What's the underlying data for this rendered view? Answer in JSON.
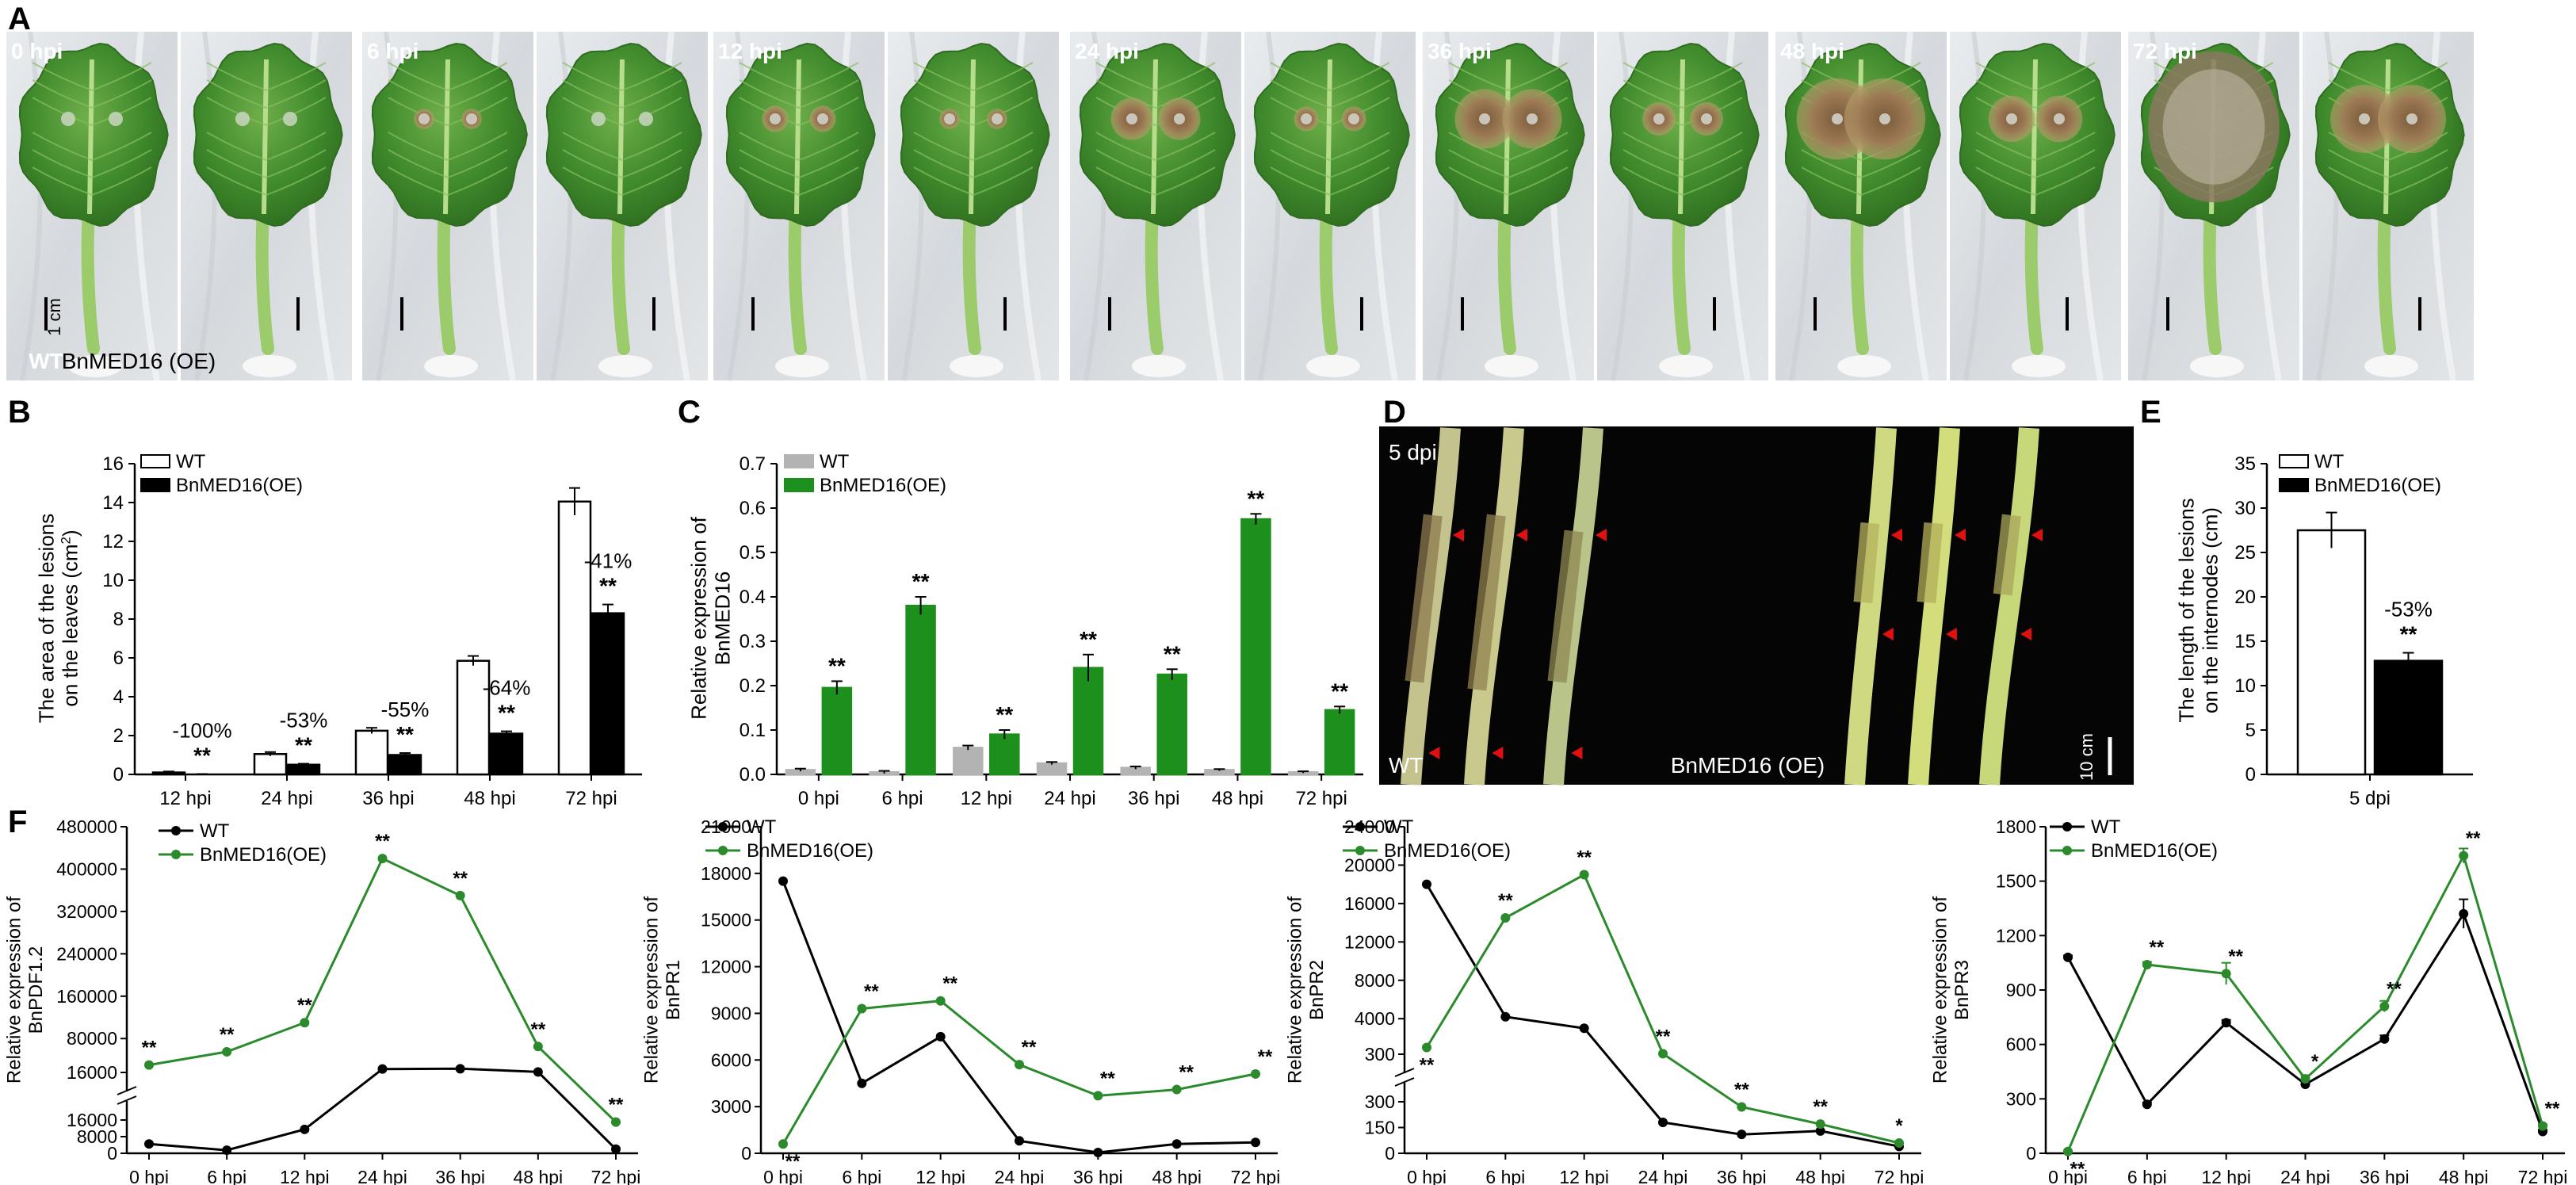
{
  "panel_labels": {
    "A": "A",
    "B": "B",
    "C": "C",
    "D": "D",
    "E": "E",
    "F": "F"
  },
  "colors": {
    "green": "#1d8f1d",
    "green_line": "#2b8a2b",
    "gray": "#b3b3b3",
    "black": "#000000",
    "white": "#ffffff",
    "red_arrow": "#e01010"
  },
  "panel_a": {
    "photos": [
      {
        "label": "0 hpi",
        "wt_rot": 0.5
      },
      {
        "label": "6 hpi",
        "wt_rot": 1
      },
      {
        "label": "12 hpi",
        "wt_rot": 2
      },
      {
        "label": "24 hpi",
        "wt_rot": 0.6
      },
      {
        "label": "36 hpi",
        "wt_rot": 0.75
      },
      {
        "label": "48 hpi",
        "wt_rot": 0.9
      },
      {
        "label": "72 hpi",
        "wt_rot": 1
      }
    ],
    "lesion_levels": [
      0,
      0.05,
      0.12,
      0.3,
      0.5,
      0.75,
      1.0
    ],
    "oe_lesion_levels": [
      0,
      0.02,
      0.05,
      0.1,
      0.2,
      0.35,
      0.6
    ],
    "scale_label": "1 cm",
    "wt_label": "WT",
    "oe_label": "BnMED16 (OE)"
  },
  "panel_d": {
    "time_label": "5 dpi",
    "wt_label": "WT",
    "oe_label": "BnMED16 (OE)",
    "scale_label": "10 cm"
  },
  "chart_data": [
    {
      "panel": "B",
      "type": "bar",
      "categories": [
        "12 hpi",
        "24 hpi",
        "36 hpi",
        "48 hpi",
        "72 hpi"
      ],
      "series": [
        {
          "name": "WT",
          "values": [
            0.1,
            1.05,
            2.25,
            5.85,
            14.05
          ],
          "errors": [
            0.05,
            0.1,
            0.15,
            0.25,
            0.7
          ]
        },
        {
          "name": "BnMED16(OE)",
          "values": [
            0.0,
            0.5,
            1.0,
            2.1,
            8.3
          ],
          "errors": [
            0.02,
            0.05,
            0.1,
            0.12,
            0.45
          ]
        }
      ],
      "annotations": [
        {
          "text": "-100%",
          "sig": "**"
        },
        {
          "text": "-53%",
          "sig": "**"
        },
        {
          "text": "-55%",
          "sig": "**"
        },
        {
          "text": "-64%",
          "sig": "**"
        },
        {
          "text": "-41%",
          "sig": "**"
        }
      ],
      "ylabel_line1": "The area of the lesions",
      "ylabel_line2": "on the leaves (cm",
      "ylabel_sup": "2",
      "ylabel_close": ")",
      "ylim": [
        0,
        16
      ],
      "yticks": [
        0,
        2,
        4,
        6,
        8,
        10,
        12,
        14,
        16
      ]
    },
    {
      "panel": "C",
      "type": "bar",
      "categories": [
        "0 hpi",
        "6 hpi",
        "12 hpi",
        "24 hpi",
        "36 hpi",
        "48 hpi",
        "72 hpi"
      ],
      "series": [
        {
          "name": "WT",
          "values": [
            0.01,
            0.005,
            0.06,
            0.025,
            0.015,
            0.01,
            0.005
          ],
          "errors": [
            0.003,
            0.003,
            0.005,
            0.003,
            0.003,
            0.002,
            0.002
          ]
        },
        {
          "name": "BnMED16(OE)",
          "values": [
            0.195,
            0.38,
            0.09,
            0.24,
            0.225,
            0.575,
            0.145
          ],
          "errors": [
            0.015,
            0.02,
            0.01,
            0.03,
            0.012,
            0.012,
            0.008
          ]
        }
      ],
      "sig": [
        "**",
        "**",
        "**",
        "**",
        "**",
        "**",
        "**"
      ],
      "ylabel_line1": "Relative expression of",
      "ylabel_line2": "BnMED16",
      "ylim": [
        0,
        0.7
      ],
      "yticks": [
        0.0,
        0.1,
        0.2,
        0.3,
        0.4,
        0.5,
        0.6,
        0.7
      ]
    },
    {
      "panel": "E",
      "type": "bar",
      "categories": [
        "5 dpi"
      ],
      "series": [
        {
          "name": "WT",
          "values": [
            27.5
          ],
          "errors": [
            2.0
          ]
        },
        {
          "name": "BnMED16(OE)",
          "values": [
            12.8
          ],
          "errors": [
            0.9
          ]
        }
      ],
      "annotation": {
        "text": "-53%",
        "sig": "**"
      },
      "ylabel_line1": "The length of the lesions",
      "ylabel_line2": "on the internodes (cm)",
      "ylim": [
        0,
        35
      ],
      "yticks": [
        0,
        5,
        10,
        15,
        20,
        25,
        30,
        35
      ]
    },
    {
      "panel": "F1",
      "type": "line",
      "x": [
        "0 hpi",
        "6 hpi",
        "12 hpi",
        "24 hpi",
        "36 hpi",
        "48 hpi",
        "72 hpi"
      ],
      "series": [
        {
          "name": "WT",
          "values": [
            4500,
            1500,
            11500,
            22500,
            23000,
            17000,
            2000
          ]
        },
        {
          "name": "BnMED16(OE)",
          "values": [
            30000,
            55000,
            110000,
            420000,
            350000,
            65000,
            15000
          ]
        }
      ],
      "sig": [
        "**",
        "**",
        "**",
        "**",
        "**",
        "**",
        "**"
      ],
      "ylabel_line1": "Relative expression of",
      "ylabel_line2": "BnPDF1.2",
      "broken_axis": {
        "lower": [
          0,
          24000
        ],
        "upper": [
          16000,
          480000
        ],
        "lower_ticks": [
          0,
          8000,
          16000
        ],
        "upper_ticks": [
          16000,
          80000,
          160000,
          240000,
          320000,
          400000,
          480000
        ]
      }
    },
    {
      "panel": "F2",
      "type": "line",
      "x": [
        "0 hpi",
        "6 hpi",
        "12 hpi",
        "24 hpi",
        "36 hpi",
        "48 hpi",
        "72 hpi"
      ],
      "series": [
        {
          "name": "WT",
          "values": [
            17500,
            4500,
            7500,
            800,
            50,
            600,
            700
          ]
        },
        {
          "name": "BnMED16(OE)",
          "values": [
            600,
            9300,
            9800,
            5700,
            3700,
            4100,
            5100
          ]
        }
      ],
      "sig": [
        "**",
        "**",
        "**",
        "**",
        "**",
        "**",
        "**"
      ],
      "ylabel_line1": "Relative expression of",
      "ylabel_line2": "BnPR1",
      "ylim": [
        0,
        21000
      ],
      "yticks": [
        0,
        3000,
        6000,
        9000,
        12000,
        15000,
        18000,
        21000
      ]
    },
    {
      "panel": "F3",
      "type": "line",
      "x": [
        "0 hpi",
        "6 hpi",
        "12 hpi",
        "24 hpi",
        "36 hpi",
        "48 hpi",
        "72 hpi"
      ],
      "series": [
        {
          "name": "WT",
          "values": [
            18000,
            4200,
            3000,
            180,
            110,
            130,
            40
          ]
        },
        {
          "name": "BnMED16(OE)",
          "values": [
            1000,
            14500,
            19000,
            350,
            270,
            170,
            60
          ]
        }
      ],
      "sig": [
        "**",
        "**",
        "**",
        "**",
        "**",
        "**",
        "*"
      ],
      "ylabel_line1": "Relative expression of",
      "ylabel_line2": "BnPR2",
      "broken_axis": {
        "lower": [
          0,
          450
        ],
        "upper": [
          300,
          24000
        ],
        "lower_ticks": [
          0,
          150,
          300
        ],
        "upper_ticks": [
          300,
          4000,
          8000,
          12000,
          16000,
          20000,
          24000
        ]
      }
    },
    {
      "panel": "F4",
      "type": "line",
      "x": [
        "0 hpi",
        "6 hpi",
        "12 hpi",
        "24 hpi",
        "36 hpi",
        "48 hpi",
        "72 hpi"
      ],
      "series": [
        {
          "name": "WT",
          "values": [
            1080,
            270,
            720,
            380,
            630,
            1320,
            120
          ],
          "errors": [
            10,
            10,
            15,
            15,
            20,
            80,
            10
          ]
        },
        {
          "name": "BnMED16(OE)",
          "values": [
            10,
            1040,
            990,
            410,
            810,
            1640,
            150
          ],
          "errors": [
            5,
            15,
            60,
            20,
            30,
            40,
            10
          ]
        }
      ],
      "sig": [
        "**",
        "**",
        "**",
        "*",
        "**",
        "**",
        "**"
      ],
      "ylabel_line1": "Relative expression of",
      "ylabel_line2": "BnPR3",
      "ylim": [
        0,
        1800
      ],
      "yticks": [
        0,
        300,
        600,
        900,
        1200,
        1500,
        1800
      ]
    }
  ]
}
